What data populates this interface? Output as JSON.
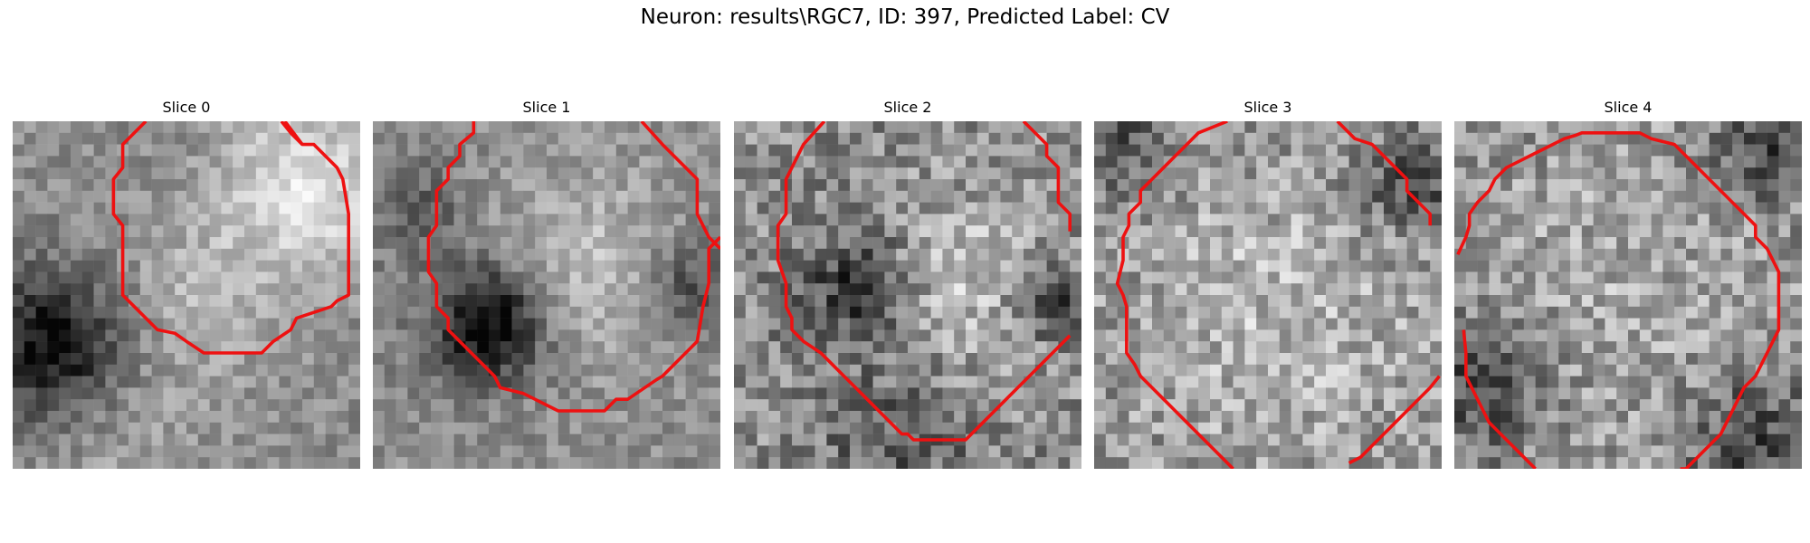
{
  "figure": {
    "title": "Neuron: results\\RGC7, ID: 397, Predicted Label: CV"
  },
  "panels": [
    {
      "title": "Slice 0",
      "contour_color": "#ee1111"
    },
    {
      "title": "Slice 1",
      "contour_color": "#ee1111"
    },
    {
      "title": "Slice 2",
      "contour_color": "#ee1111"
    },
    {
      "title": "Slice 3",
      "contour_color": "#ee1111"
    },
    {
      "title": "Slice 4",
      "contour_color": "#ee1111"
    }
  ]
}
